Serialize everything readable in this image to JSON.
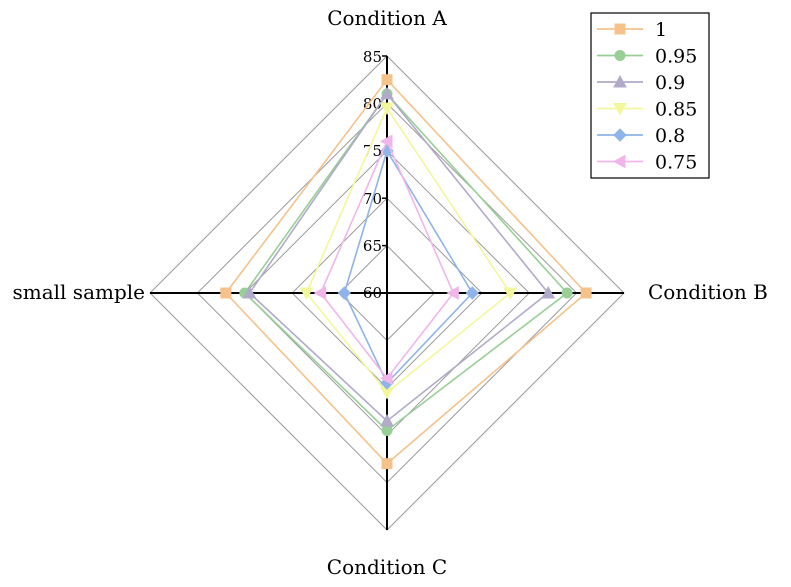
{
  "chart_data": {
    "type": "radar",
    "axes": [
      "Condition A",
      "Condition B",
      "Condition C",
      "small sample"
    ],
    "range": [
      60,
      85
    ],
    "ticks": [
      60,
      65,
      70,
      75,
      80,
      85
    ],
    "series": [
      {
        "name": "1",
        "color": "#f5c28c",
        "marker": "square",
        "values": [
          82.5,
          81.0,
          78.0,
          77.0
        ]
      },
      {
        "name": "0.95",
        "color": "#98cf96",
        "marker": "circle",
        "values": [
          81.0,
          79.0,
          74.5,
          75.0
        ]
      },
      {
        "name": "0.9",
        "color": "#b1aac9",
        "marker": "triangle-up",
        "values": [
          81.0,
          77.0,
          73.5,
          74.5
        ]
      },
      {
        "name": "0.85",
        "color": "#f3f79b",
        "marker": "triangle-down",
        "values": [
          79.5,
          73.0,
          70.5,
          68.5
        ]
      },
      {
        "name": "0.8",
        "color": "#8fb4e9",
        "marker": "diamond",
        "values": [
          75.0,
          69.0,
          69.5,
          64.5
        ]
      },
      {
        "name": "0.75",
        "color": "#f0b6ea",
        "marker": "triangle-left",
        "values": [
          76.0,
          67.0,
          69.0,
          67.0
        ]
      }
    ],
    "legend_position": "top-right",
    "grid": true
  }
}
